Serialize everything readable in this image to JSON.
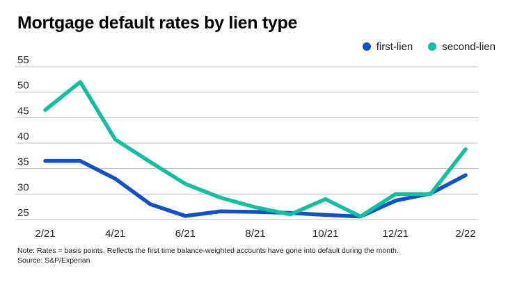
{
  "title": "Mortgage default rates by lien type",
  "legend": [
    {
      "label": "first-lien",
      "color": "#0e51c9",
      "icon": "dot"
    },
    {
      "label": "second-lien",
      "color": "#0fbf9e",
      "icon": "dot"
    }
  ],
  "chart_data": {
    "type": "line",
    "title": "Mortgage default rates by lien type",
    "x": [
      "2/21",
      "3/21",
      "4/21",
      "5/21",
      "6/21",
      "7/21",
      "8/21",
      "9/21",
      "10/21",
      "11/21",
      "12/21",
      "1/22",
      "2/22"
    ],
    "series": [
      {
        "name": "first-lien",
        "color": "#0e51c9",
        "values": [
          36.5,
          36.5,
          33.0,
          28.0,
          25.7,
          26.6,
          26.5,
          26.3,
          25.9,
          25.6,
          28.7,
          30.1,
          33.7
        ]
      },
      {
        "name": "second-lien",
        "color": "#0fbf9e",
        "values": [
          46.5,
          52.0,
          40.7,
          36.3,
          32.0,
          29.3,
          27.4,
          26.0,
          29.0,
          25.6,
          30.0,
          30.0,
          38.8
        ]
      }
    ],
    "ylim": [
      25,
      55
    ],
    "yticks": [
      25,
      30,
      35,
      40,
      45,
      50,
      55
    ],
    "xtick_indices": [
      0,
      2,
      4,
      6,
      8,
      10,
      12
    ],
    "xtick_labels": [
      "2/21",
      "4/21",
      "6/21",
      "8/21",
      "10/21",
      "12/21",
      "2/22"
    ],
    "xlabel": "",
    "ylabel": "",
    "grid": true,
    "legend_position": "top-right",
    "gridline_color": "#bfbfbf",
    "axis_text_color": "#262626"
  },
  "footer": {
    "note": "Note: Rates = basis points. Reflects the first time balance-weighted accounts have gone into default during the month.",
    "source": "Source: S&P/Experian"
  }
}
